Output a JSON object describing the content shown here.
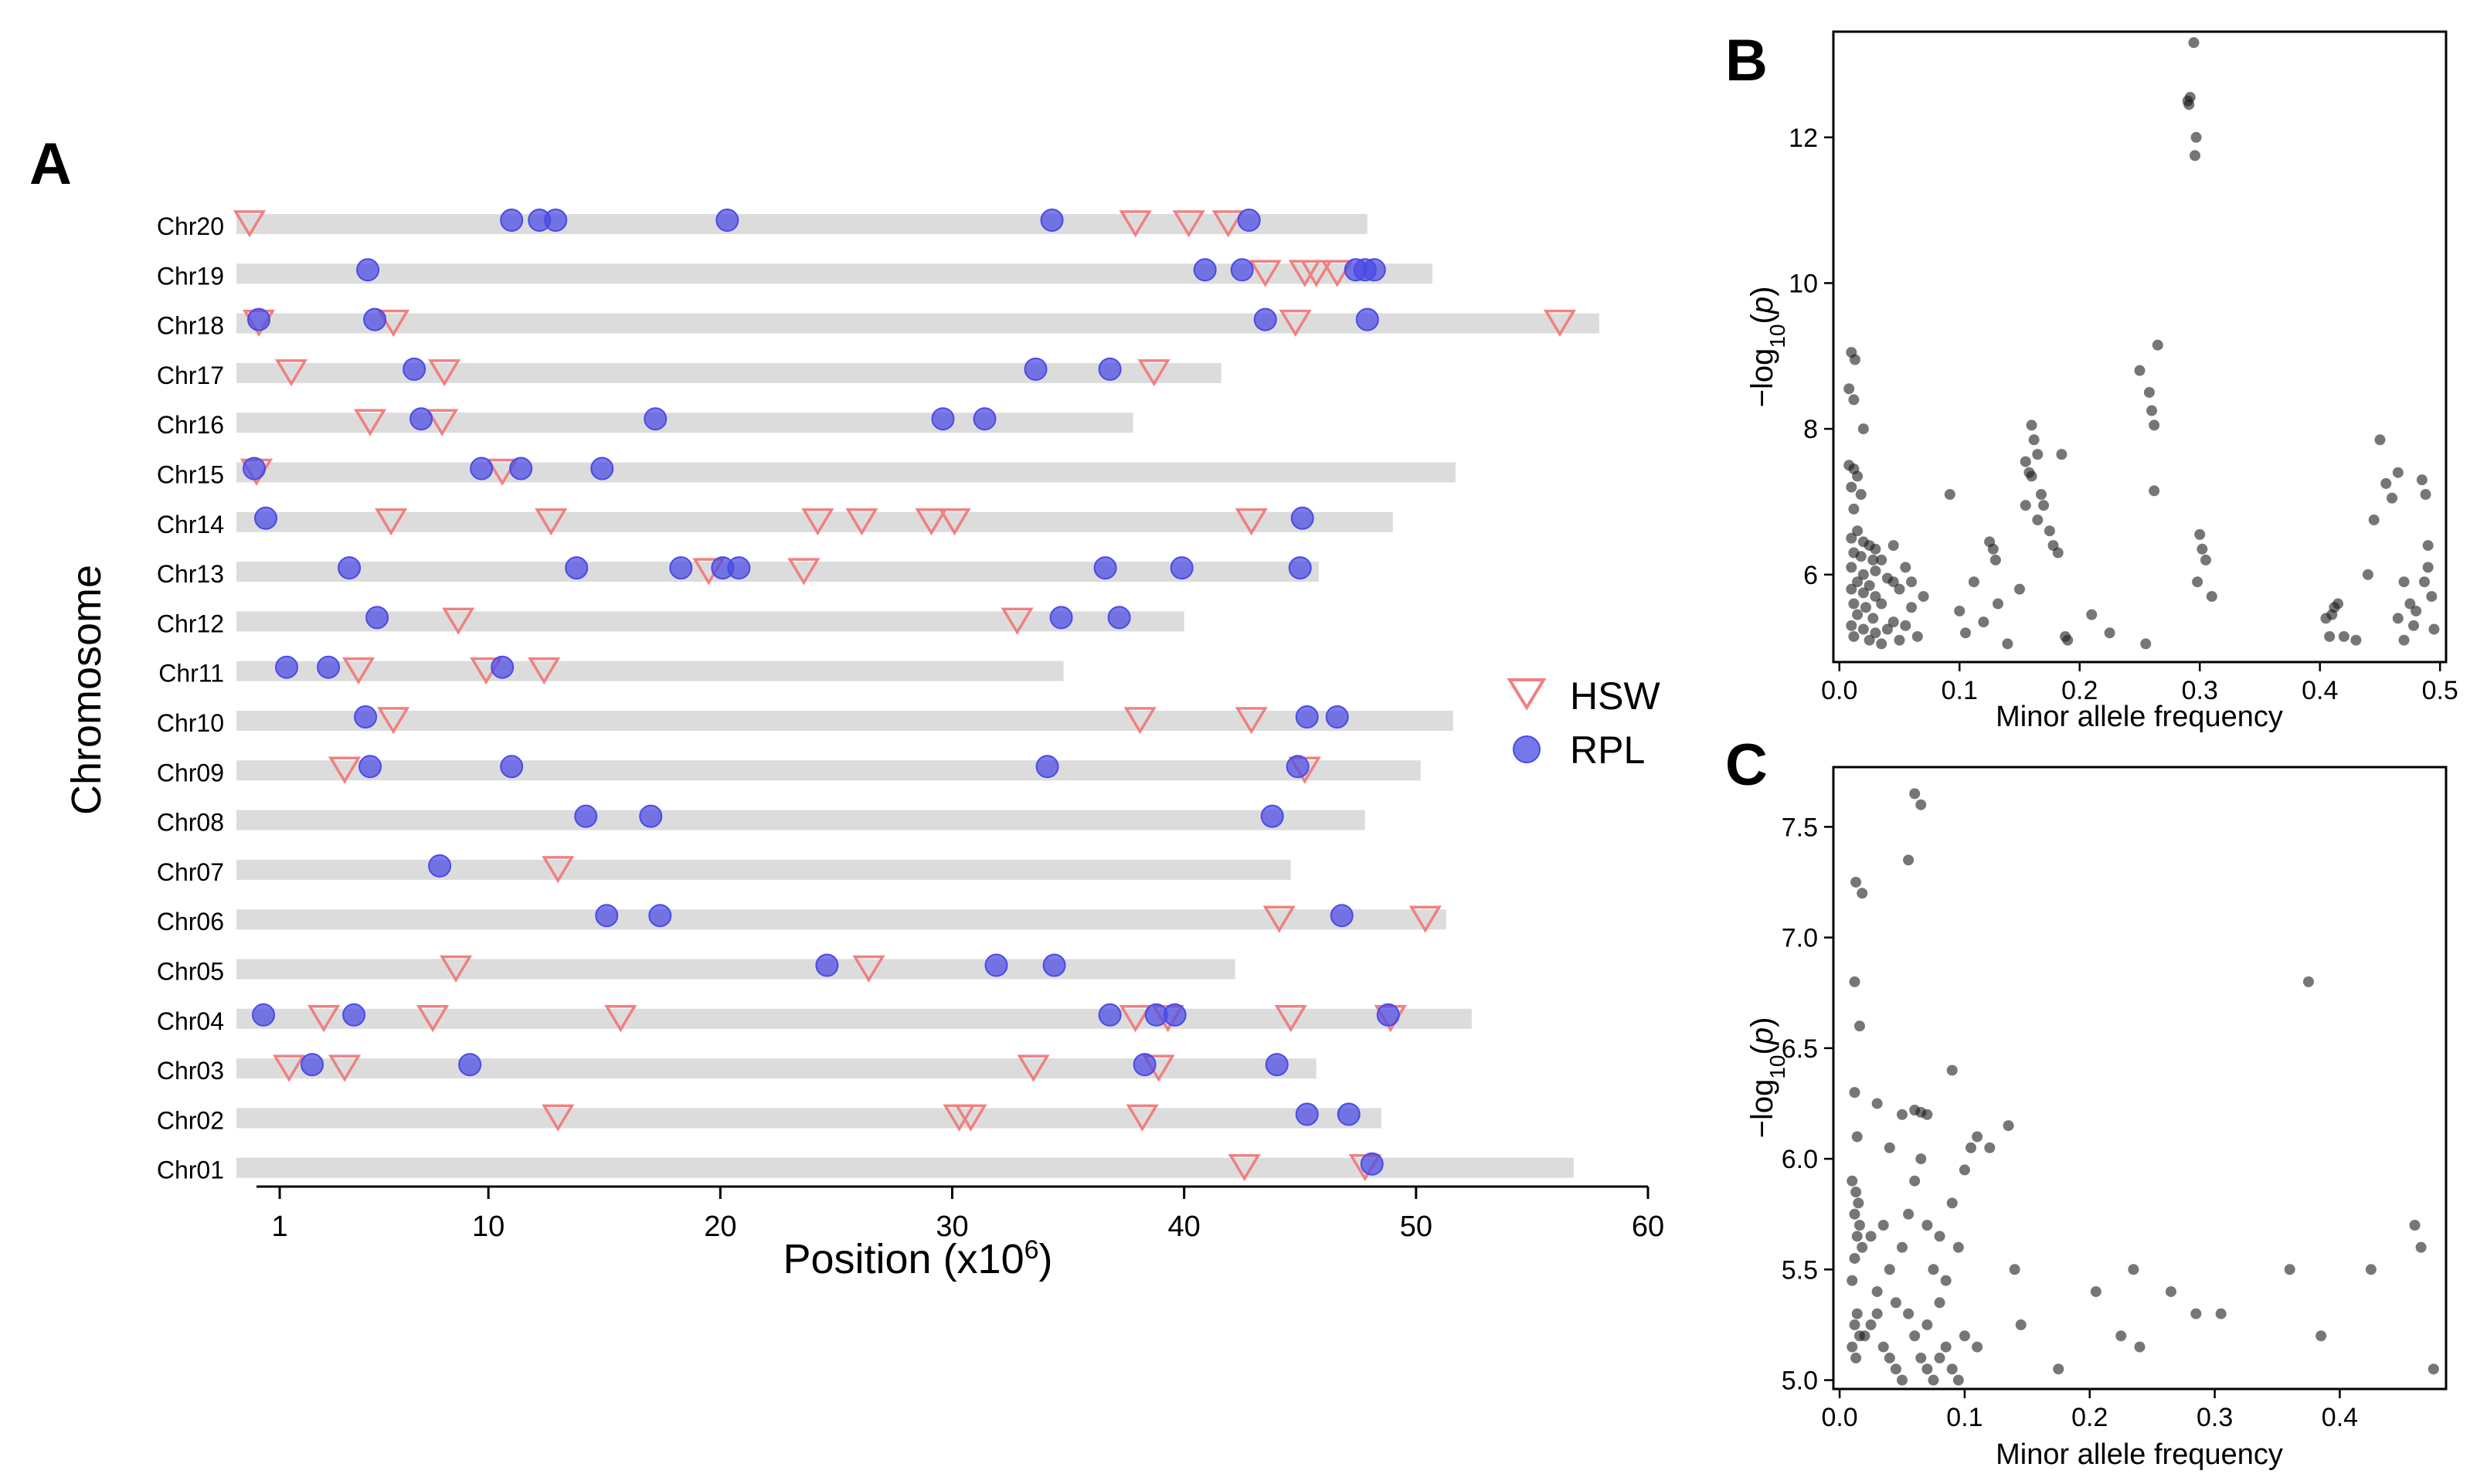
{
  "chart_data": [
    {
      "panel": "A",
      "type": "scatter",
      "title": "",
      "xlabel": "Position (x10^6)",
      "xlabel_base": "Position (x10",
      "xlabel_sup": "6",
      "xlabel_close": ")",
      "ylabel": "Chromosome",
      "xlim": [
        0,
        60
      ],
      "xticks": [
        1,
        10,
        20,
        30,
        40,
        50,
        60
      ],
      "legend": [
        "HSW",
        "RPL"
      ],
      "colors": {
        "HSW": "#f08080",
        "RPL": "#4a4ae6",
        "bar": "#dcdcdc"
      },
      "chromosomes": [
        {
          "name": "Chr20",
          "length": 47.9,
          "HSW": [
            -0.3,
            37.9,
            40.2,
            41.9
          ],
          "RPL": [
            11.0,
            12.2,
            12.9,
            20.3,
            34.3,
            42.8
          ]
        },
        {
          "name": "Chr19",
          "length": 50.7,
          "HSW": [
            43.5,
            45.2,
            45.7,
            46.6
          ],
          "RPL": [
            4.8,
            40.9,
            42.5,
            47.4,
            47.8,
            48.2
          ]
        },
        {
          "name": "Chr18",
          "length": 57.9,
          "HSW": [
            0.1,
            5.9,
            44.8,
            56.2
          ],
          "RPL": [
            0.1,
            5.1,
            43.5,
            47.9
          ]
        },
        {
          "name": "Chr17",
          "length": 41.6,
          "HSW": [
            1.5,
            8.1,
            38.7
          ],
          "RPL": [
            6.8,
            33.6,
            36.8
          ]
        },
        {
          "name": "Chr16",
          "length": 37.8,
          "HSW": [
            4.9,
            8.0
          ],
          "RPL": [
            7.1,
            17.2,
            29.6,
            31.4
          ]
        },
        {
          "name": "Chr15",
          "length": 51.7,
          "HSW": [
            0.0,
            10.6
          ],
          "RPL": [
            -0.1,
            9.7,
            11.4,
            14.9
          ]
        },
        {
          "name": "Chr14",
          "length": 49.0,
          "HSW": [
            5.8,
            12.7,
            24.2,
            26.1,
            29.1,
            30.1,
            42.9
          ],
          "RPL": [
            0.4,
            45.1
          ]
        },
        {
          "name": "Chr13",
          "length": 45.8,
          "HSW": [
            19.5,
            23.6
          ],
          "RPL": [
            4.0,
            13.8,
            18.3,
            20.1,
            20.8,
            36.6,
            39.9,
            45.0
          ]
        },
        {
          "name": "Chr12",
          "length": 40.0,
          "HSW": [
            8.7,
            32.8
          ],
          "RPL": [
            5.2,
            34.7,
            37.2
          ]
        },
        {
          "name": "Chr11",
          "length": 34.8,
          "HSW": [
            4.4,
            9.9,
            12.4
          ],
          "RPL": [
            1.3,
            3.1,
            10.6
          ]
        },
        {
          "name": "Chr10",
          "length": 51.6,
          "HSW": [
            5.9,
            38.1,
            42.9
          ],
          "RPL": [
            4.7,
            45.3,
            46.6
          ]
        },
        {
          "name": "Chr09",
          "length": 50.2,
          "HSW": [
            3.8,
            45.2
          ],
          "RPL": [
            4.9,
            11.0,
            34.1,
            44.9
          ]
        },
        {
          "name": "Chr08",
          "length": 47.8,
          "HSW": [],
          "RPL": [
            14.2,
            17.0,
            43.8
          ]
        },
        {
          "name": "Chr07",
          "length": 44.6,
          "HSW": [
            13.0
          ],
          "RPL": [
            7.9
          ]
        },
        {
          "name": "Chr06",
          "length": 51.3,
          "HSW": [
            44.1,
            50.4
          ],
          "RPL": [
            15.1,
            17.4,
            46.8
          ]
        },
        {
          "name": "Chr05",
          "length": 42.2,
          "HSW": [
            8.6,
            26.4
          ],
          "RPL": [
            24.6,
            31.9,
            34.4
          ]
        },
        {
          "name": "Chr04",
          "length": 52.4,
          "HSW": [
            2.9,
            7.6,
            15.7,
            37.9,
            39.3,
            44.6,
            48.9
          ],
          "RPL": [
            0.3,
            4.2,
            36.8,
            38.8,
            39.6,
            48.8
          ]
        },
        {
          "name": "Chr03",
          "length": 45.7,
          "HSW": [
            1.4,
            3.8,
            33.5,
            38.9
          ],
          "RPL": [
            2.4,
            9.2,
            38.3,
            44.0
          ]
        },
        {
          "name": "Chr02",
          "length": 48.5,
          "HSW": [
            13.0,
            30.3,
            30.8,
            38.2
          ],
          "RPL": [
            45.3,
            47.1
          ]
        },
        {
          "name": "Chr01",
          "length": 56.8,
          "HSW": [
            42.6,
            47.8
          ],
          "RPL": [
            48.1
          ]
        }
      ]
    },
    {
      "panel": "B",
      "type": "scatter",
      "title": "",
      "xlabel": "Minor allele frequency",
      "ylabel": "−log10(p)",
      "xlim": [
        -0.005,
        0.505
      ],
      "ylim": [
        4.8,
        13.45
      ],
      "xticks": [
        0.0,
        0.1,
        0.2,
        0.3,
        0.4,
        0.5
      ],
      "yticks": [
        6,
        8,
        10,
        12
      ],
      "point_color": "#1a1a1a",
      "points": [
        [
          0.01,
          9.05
        ],
        [
          0.013,
          8.95
        ],
        [
          0.008,
          8.55
        ],
        [
          0.012,
          8.4
        ],
        [
          0.02,
          8.0
        ],
        [
          0.008,
          7.5
        ],
        [
          0.012,
          7.45
        ],
        [
          0.015,
          7.35
        ],
        [
          0.01,
          7.2
        ],
        [
          0.018,
          7.1
        ],
        [
          0.012,
          6.9
        ],
        [
          0.015,
          6.6
        ],
        [
          0.01,
          6.5
        ],
        [
          0.02,
          6.45
        ],
        [
          0.025,
          6.4
        ],
        [
          0.03,
          6.35
        ],
        [
          0.012,
          6.3
        ],
        [
          0.018,
          6.25
        ],
        [
          0.028,
          6.2
        ],
        [
          0.035,
          6.2
        ],
        [
          0.01,
          6.1
        ],
        [
          0.02,
          6.0
        ],
        [
          0.03,
          6.05
        ],
        [
          0.04,
          5.95
        ],
        [
          0.015,
          5.9
        ],
        [
          0.025,
          5.85
        ],
        [
          0.045,
          5.9
        ],
        [
          0.01,
          5.8
        ],
        [
          0.02,
          5.75
        ],
        [
          0.03,
          5.7
        ],
        [
          0.05,
          5.8
        ],
        [
          0.012,
          5.6
        ],
        [
          0.022,
          5.55
        ],
        [
          0.035,
          5.6
        ],
        [
          0.06,
          5.55
        ],
        [
          0.015,
          5.45
        ],
        [
          0.028,
          5.4
        ],
        [
          0.045,
          5.35
        ],
        [
          0.01,
          5.3
        ],
        [
          0.02,
          5.25
        ],
        [
          0.03,
          5.2
        ],
        [
          0.04,
          5.25
        ],
        [
          0.055,
          5.3
        ],
        [
          0.012,
          5.15
        ],
        [
          0.025,
          5.1
        ],
        [
          0.035,
          5.05
        ],
        [
          0.05,
          5.1
        ],
        [
          0.065,
          5.15
        ],
        [
          0.045,
          6.4
        ],
        [
          0.055,
          6.1
        ],
        [
          0.06,
          5.9
        ],
        [
          0.07,
          5.7
        ],
        [
          0.092,
          7.1
        ],
        [
          0.1,
          5.5
        ],
        [
          0.105,
          5.2
        ],
        [
          0.112,
          5.9
        ],
        [
          0.12,
          5.35
        ],
        [
          0.125,
          6.45
        ],
        [
          0.128,
          6.35
        ],
        [
          0.13,
          6.2
        ],
        [
          0.132,
          5.6
        ],
        [
          0.14,
          5.05
        ],
        [
          0.15,
          5.8
        ],
        [
          0.155,
          7.55
        ],
        [
          0.158,
          7.4
        ],
        [
          0.16,
          8.05
        ],
        [
          0.162,
          7.85
        ],
        [
          0.165,
          7.65
        ],
        [
          0.16,
          7.35
        ],
        [
          0.168,
          7.1
        ],
        [
          0.17,
          6.95
        ],
        [
          0.165,
          6.75
        ],
        [
          0.175,
          6.6
        ],
        [
          0.178,
          6.4
        ],
        [
          0.182,
          6.3
        ],
        [
          0.185,
          7.65
        ],
        [
          0.188,
          5.15
        ],
        [
          0.19,
          5.1
        ],
        [
          0.155,
          6.95
        ],
        [
          0.21,
          5.45
        ],
        [
          0.225,
          5.2
        ],
        [
          0.255,
          5.05
        ],
        [
          0.25,
          8.8
        ],
        [
          0.258,
          8.5
        ],
        [
          0.26,
          8.25
        ],
        [
          0.262,
          8.05
        ],
        [
          0.265,
          9.15
        ],
        [
          0.262,
          7.15
        ],
        [
          0.29,
          12.5
        ],
        [
          0.292,
          12.55
        ],
        [
          0.291,
          12.45
        ],
        [
          0.295,
          13.3
        ],
        [
          0.296,
          11.75
        ],
        [
          0.297,
          12.0
        ],
        [
          0.3,
          6.55
        ],
        [
          0.302,
          6.35
        ],
        [
          0.305,
          6.2
        ],
        [
          0.298,
          5.9
        ],
        [
          0.31,
          5.7
        ],
        [
          0.405,
          5.4
        ],
        [
          0.41,
          5.45
        ],
        [
          0.412,
          5.55
        ],
        [
          0.415,
          5.6
        ],
        [
          0.408,
          5.15
        ],
        [
          0.42,
          5.15
        ],
        [
          0.43,
          5.1
        ],
        [
          0.44,
          6.0
        ],
        [
          0.445,
          6.75
        ],
        [
          0.45,
          7.85
        ],
        [
          0.455,
          7.25
        ],
        [
          0.46,
          7.05
        ],
        [
          0.465,
          7.4
        ],
        [
          0.47,
          5.9
        ],
        [
          0.47,
          5.1
        ],
        [
          0.475,
          5.6
        ],
        [
          0.48,
          5.5
        ],
        [
          0.485,
          7.3
        ],
        [
          0.488,
          7.1
        ],
        [
          0.49,
          6.4
        ],
        [
          0.49,
          6.1
        ],
        [
          0.493,
          5.7
        ],
        [
          0.495,
          5.25
        ],
        [
          0.465,
          5.4
        ],
        [
          0.478,
          5.3
        ],
        [
          0.487,
          5.9
        ]
      ]
    },
    {
      "panel": "C",
      "type": "scatter",
      "title": "",
      "xlabel": "Minor allele frequency",
      "ylabel": "−log10(p)",
      "xlim": [
        -0.005,
        0.485
      ],
      "ylim": [
        4.96,
        7.77
      ],
      "xticks": [
        0.0,
        0.1,
        0.2,
        0.3,
        0.4
      ],
      "yticks": [
        5.0,
        5.5,
        6.0,
        6.5,
        7.0,
        7.5
      ],
      "point_color": "#1a1a1a",
      "points": [
        [
          0.013,
          7.25
        ],
        [
          0.018,
          7.2
        ],
        [
          0.012,
          6.8
        ],
        [
          0.016,
          6.6
        ],
        [
          0.012,
          6.3
        ],
        [
          0.014,
          6.1
        ],
        [
          0.01,
          5.9
        ],
        [
          0.013,
          5.85
        ],
        [
          0.015,
          5.8
        ],
        [
          0.012,
          5.75
        ],
        [
          0.016,
          5.7
        ],
        [
          0.014,
          5.65
        ],
        [
          0.018,
          5.6
        ],
        [
          0.012,
          5.55
        ],
        [
          0.01,
          5.45
        ],
        [
          0.014,
          5.3
        ],
        [
          0.012,
          5.25
        ],
        [
          0.016,
          5.2
        ],
        [
          0.01,
          5.15
        ],
        [
          0.013,
          5.1
        ],
        [
          0.02,
          5.2
        ],
        [
          0.025,
          5.25
        ],
        [
          0.03,
          5.3
        ],
        [
          0.035,
          5.15
        ],
        [
          0.04,
          5.1
        ],
        [
          0.045,
          5.05
        ],
        [
          0.05,
          5.0
        ],
        [
          0.055,
          5.3
        ],
        [
          0.06,
          5.2
        ],
        [
          0.065,
          5.1
        ],
        [
          0.07,
          5.05
        ],
        [
          0.075,
          5.0
        ],
        [
          0.08,
          5.1
        ],
        [
          0.085,
          5.15
        ],
        [
          0.09,
          5.05
        ],
        [
          0.095,
          5.0
        ],
        [
          0.1,
          5.2
        ],
        [
          0.03,
          5.4
        ],
        [
          0.04,
          5.5
        ],
        [
          0.05,
          5.6
        ],
        [
          0.055,
          5.75
        ],
        [
          0.06,
          5.9
        ],
        [
          0.065,
          6.0
        ],
        [
          0.07,
          5.7
        ],
        [
          0.075,
          5.5
        ],
        [
          0.08,
          5.65
        ],
        [
          0.085,
          5.45
        ],
        [
          0.09,
          5.8
        ],
        [
          0.095,
          5.6
        ],
        [
          0.1,
          5.95
        ],
        [
          0.105,
          6.05
        ],
        [
          0.11,
          6.1
        ],
        [
          0.03,
          6.25
        ],
        [
          0.04,
          6.05
        ],
        [
          0.05,
          6.2
        ],
        [
          0.06,
          6.22
        ],
        [
          0.065,
          6.21
        ],
        [
          0.07,
          6.2
        ],
        [
          0.09,
          6.4
        ],
        [
          0.055,
          7.35
        ],
        [
          0.06,
          7.65
        ],
        [
          0.065,
          7.6
        ],
        [
          0.12,
          6.05
        ],
        [
          0.135,
          6.15
        ],
        [
          0.14,
          5.5
        ],
        [
          0.145,
          5.25
        ],
        [
          0.175,
          5.05
        ],
        [
          0.205,
          5.4
        ],
        [
          0.225,
          5.2
        ],
        [
          0.235,
          5.5
        ],
        [
          0.24,
          5.15
        ],
        [
          0.265,
          5.4
        ],
        [
          0.285,
          5.3
        ],
        [
          0.305,
          5.3
        ],
        [
          0.36,
          5.5
        ],
        [
          0.375,
          6.8
        ],
        [
          0.385,
          5.2
        ],
        [
          0.425,
          5.5
        ],
        [
          0.46,
          5.7
        ],
        [
          0.465,
          5.6
        ],
        [
          0.475,
          5.05
        ],
        [
          0.035,
          5.7
        ],
        [
          0.025,
          5.65
        ],
        [
          0.045,
          5.35
        ],
        [
          0.11,
          5.15
        ],
        [
          0.08,
          5.35
        ],
        [
          0.07,
          5.25
        ]
      ]
    }
  ]
}
